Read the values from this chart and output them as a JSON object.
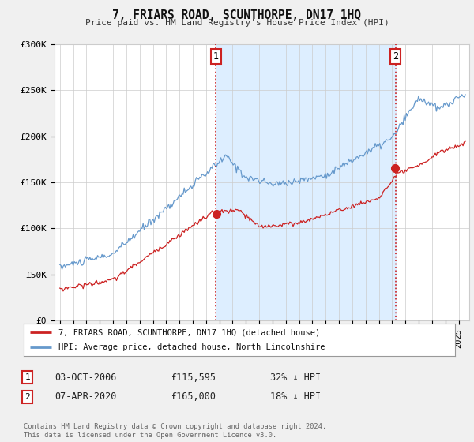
{
  "title": "7, FRIARS ROAD, SCUNTHORPE, DN17 1HQ",
  "subtitle": "Price paid vs. HM Land Registry's House Price Index (HPI)",
  "background_color": "#f0f0f0",
  "plot_bg_color": "#ffffff",
  "hpi_color": "#6699cc",
  "hpi_fill_color": "#ddeeff",
  "price_color": "#cc2222",
  "vline_color": "#cc2222",
  "grid_color": "#cccccc",
  "ylim": [
    0,
    300000
  ],
  "yticks": [
    0,
    50000,
    100000,
    150000,
    200000,
    250000,
    300000
  ],
  "ytick_labels": [
    "£0",
    "£50K",
    "£100K",
    "£150K",
    "£200K",
    "£250K",
    "£300K"
  ],
  "sale1_price": 115595,
  "sale1_date_str": "03-OCT-2006",
  "sale1_pct": "32% ↓ HPI",
  "sale1_year": 2006.75,
  "sale2_price": 165000,
  "sale2_date_str": "07-APR-2020",
  "sale2_pct": "18% ↓ HPI",
  "sale2_year": 2020.25,
  "legend_label1": "7, FRIARS ROAD, SCUNTHORPE, DN17 1HQ (detached house)",
  "legend_label2": "HPI: Average price, detached house, North Lincolnshire",
  "footer_text": "Contains HM Land Registry data © Crown copyright and database right 2024.\nThis data is licensed under the Open Government Licence v3.0.",
  "xlim_left": 1994.6,
  "xlim_right": 2025.8
}
